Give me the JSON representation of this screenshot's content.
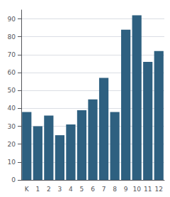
{
  "chart_data": {
    "type": "bar",
    "categories": [
      "K",
      "1",
      "2",
      "3",
      "4",
      "5",
      "6",
      "7",
      "8",
      "9",
      "10",
      "11",
      "12"
    ],
    "values": [
      38,
      30,
      36,
      25,
      31,
      39,
      45,
      57,
      38,
      84,
      92,
      66,
      72
    ],
    "color": "#2e6080",
    "ylim": [
      0,
      95
    ],
    "yticks": [
      0,
      10,
      20,
      30,
      40,
      50,
      60,
      70,
      80,
      90
    ],
    "grid": true
  }
}
